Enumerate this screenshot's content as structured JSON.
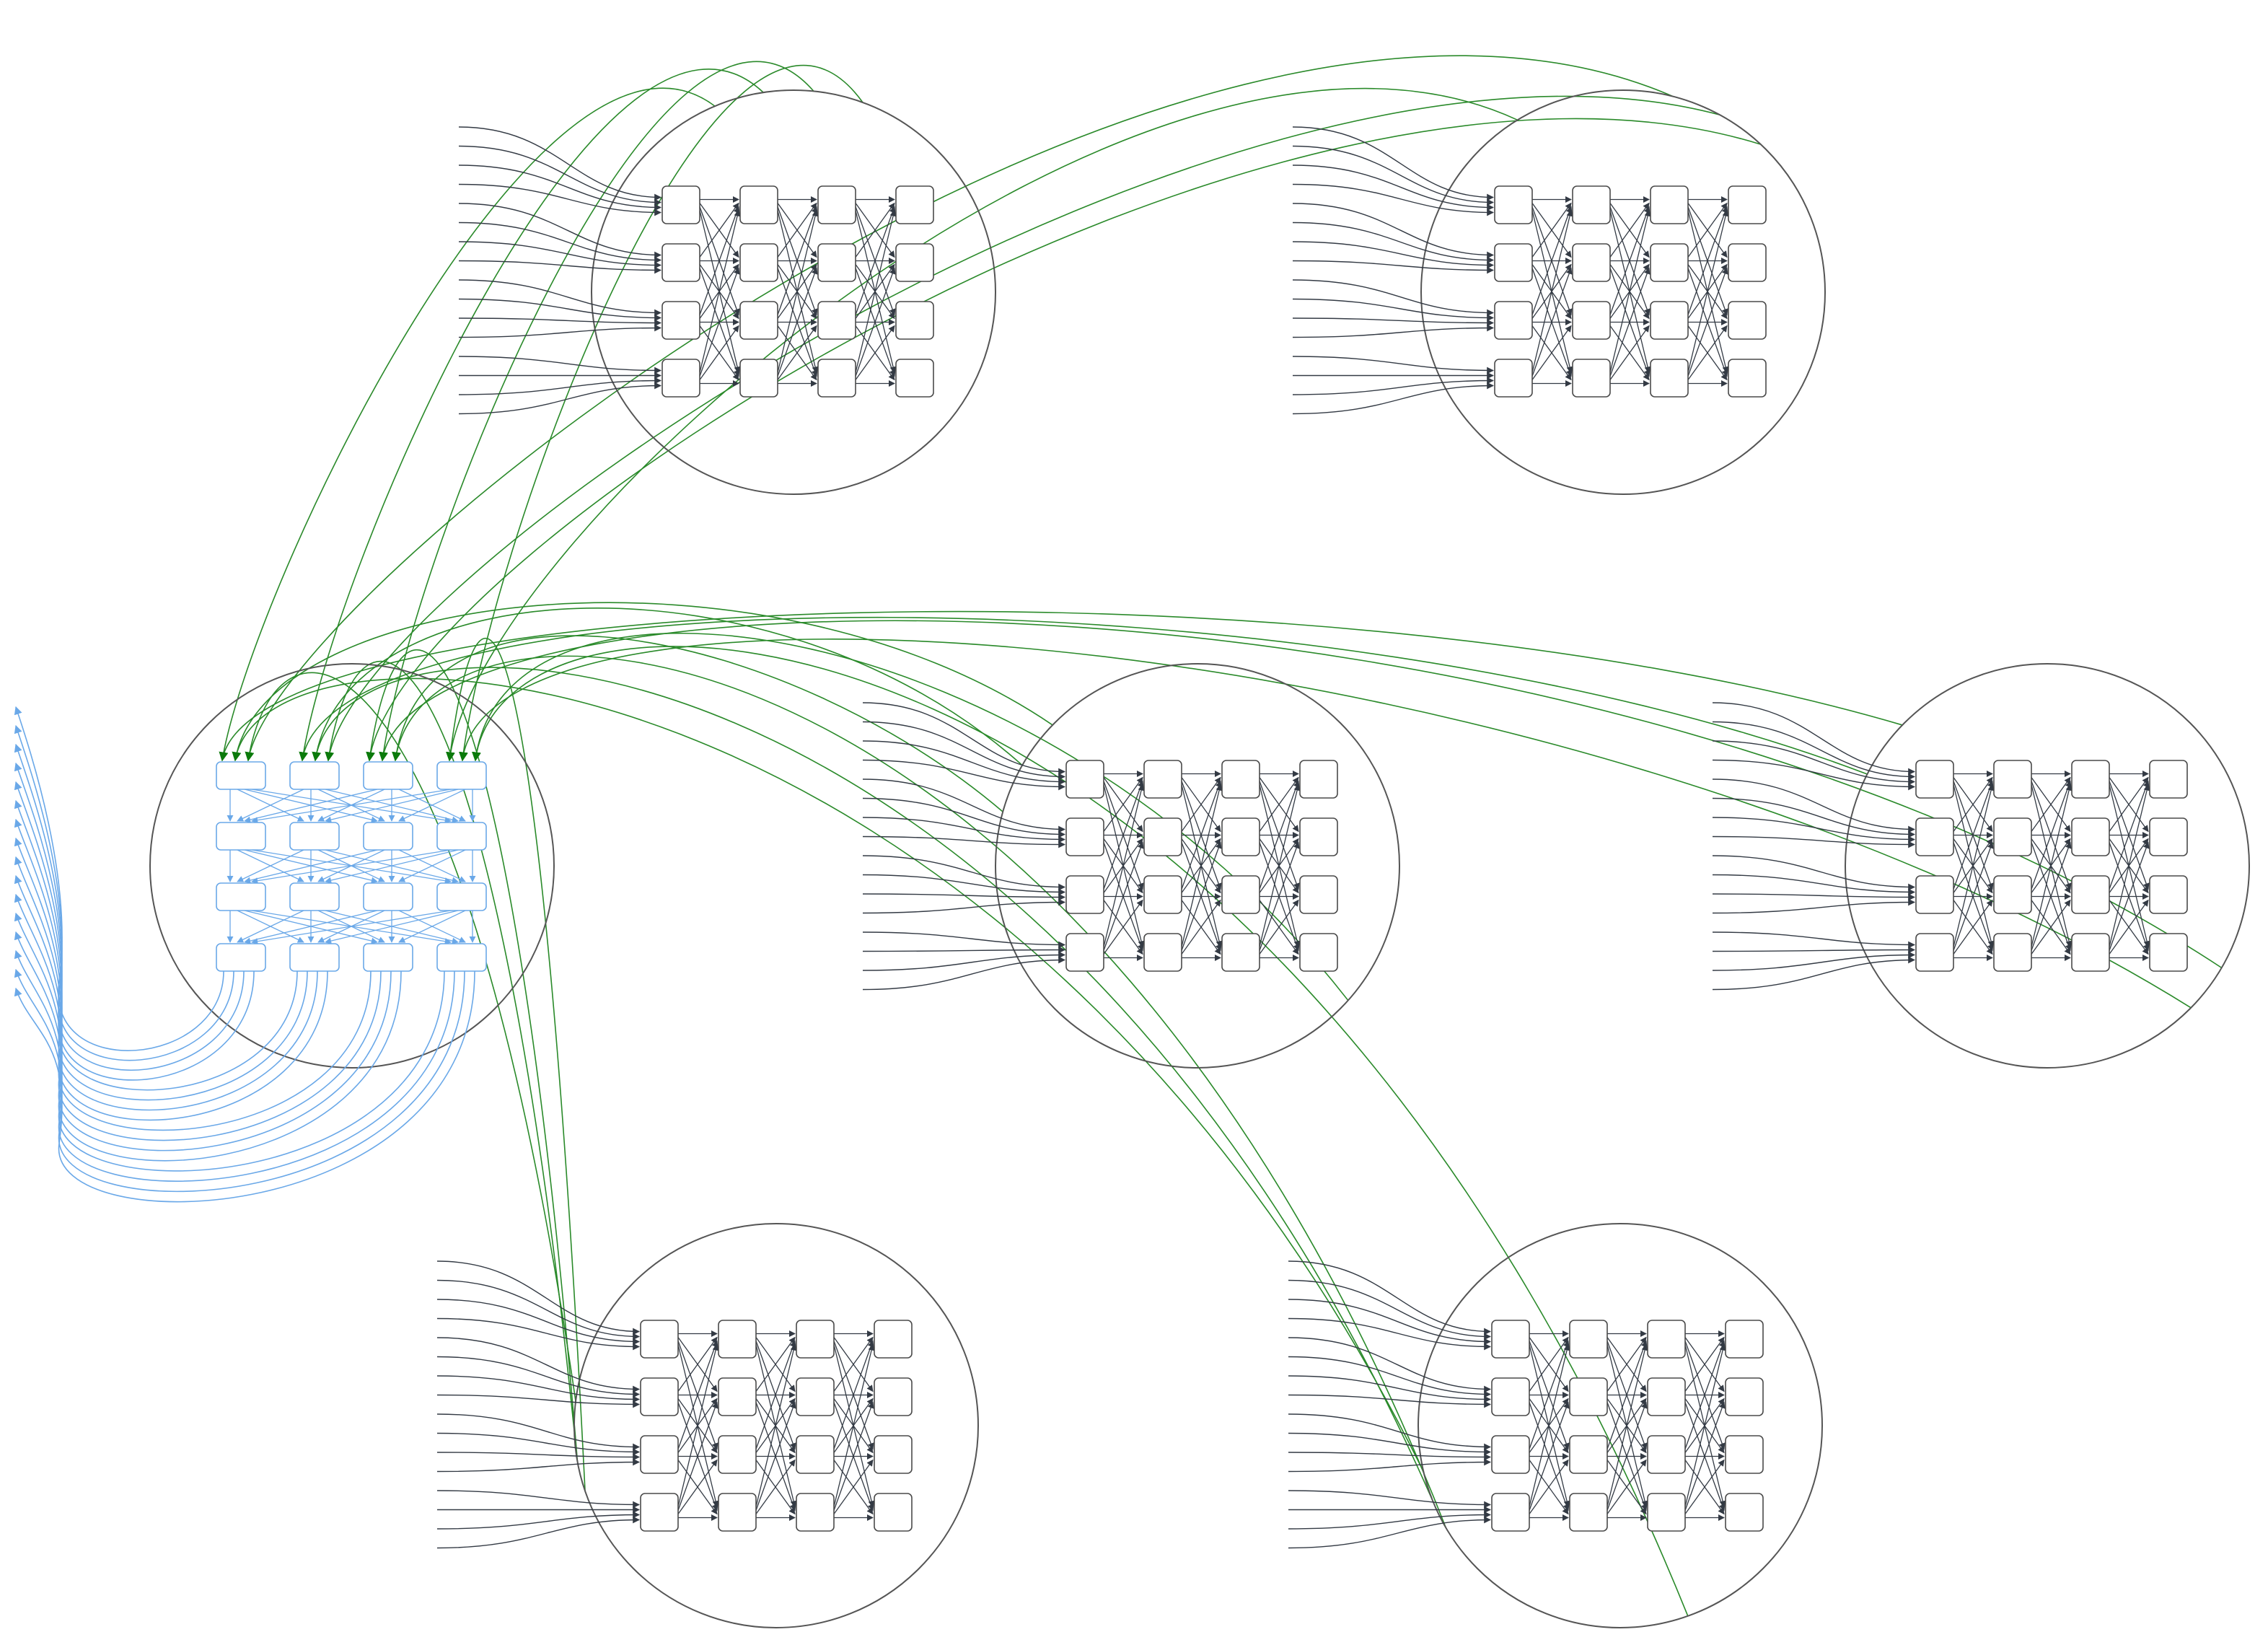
{
  "diagram": {
    "kind": "network-graph",
    "clusters": [
      {
        "id": "cluster-top-left",
        "highlighted": false
      },
      {
        "id": "cluster-top-right",
        "highlighted": false
      },
      {
        "id": "cluster-center",
        "highlighted": false
      },
      {
        "id": "cluster-right",
        "highlighted": false
      },
      {
        "id": "cluster-bottom-left",
        "highlighted": false
      },
      {
        "id": "cluster-bottom-right",
        "highlighted": false
      },
      {
        "id": "cluster-left-highlight",
        "highlighted": true
      }
    ],
    "grid": {
      "rows": 4,
      "cols": 4
    },
    "inputs_per_cluster": 16,
    "colors": {
      "node_stroke": "#4a4a4a",
      "edge": "#333a44",
      "cluster_outline": "#555555",
      "highlight": "#6aa8e8",
      "cross_link": "#2a8a2a",
      "arrow_green": "#0b7a0b"
    }
  }
}
